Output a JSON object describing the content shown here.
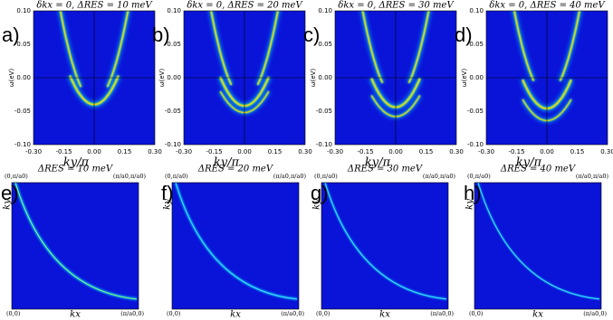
{
  "top_panels": [
    {
      "label": "a)",
      "title": "δkx = 0, ΔRES = 10 meV"
    },
    {
      "label": "b)",
      "title": "δkx = 0, ΔRES = 20 meV"
    },
    {
      "label": "c)",
      "title": "δkx = 0, ΔRES = 30 meV"
    },
    {
      "label": "d)",
      "title": "δkx = 0, ΔRES = 40 meV"
    }
  ],
  "top_axes": {
    "y_label": "ω(eV)",
    "y_ticks": [
      "0.10",
      "0.05",
      "0.00",
      "-0.05",
      "-0.10"
    ],
    "x_ticks": [
      "-0.30",
      "-0.15",
      "0.00",
      "0.15",
      "0.30"
    ],
    "x_label": "ky/π"
  },
  "bottom_panels": [
    {
      "label": "e)",
      "title": "ΔRES = 10 meV"
    },
    {
      "label": "f)",
      "title": "ΔRES = 20 meV"
    },
    {
      "label": "g)",
      "title": "ΔRES = 30 meV"
    },
    {
      "label": "h)",
      "title": "ΔRES = 40 meV"
    }
  ],
  "bottom_axes": {
    "x_label": "kx",
    "y_label": "ky",
    "corner_top_left": "(0,π/a0)",
    "corner_top_right": "(π/a0,π/a0)",
    "corner_bottom_left": "(0,0)",
    "corner_bottom_right": "(π/a0,0)"
  }
}
